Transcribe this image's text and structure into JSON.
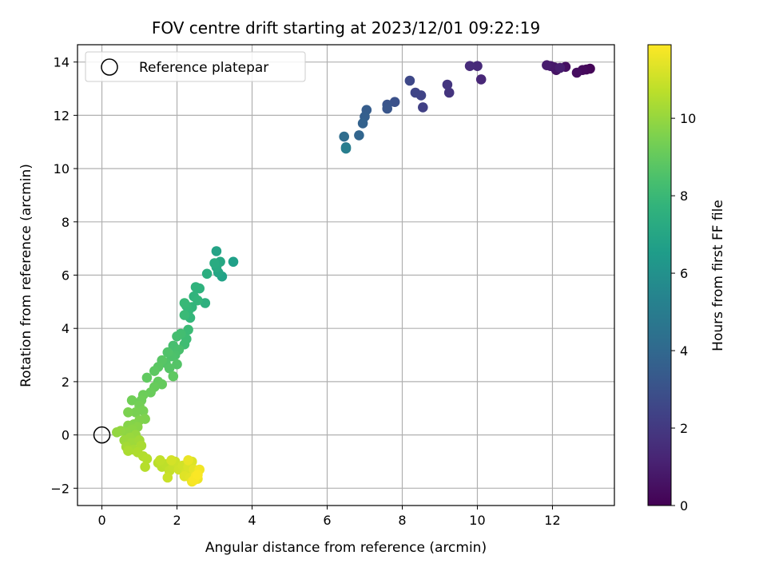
{
  "chart_data": {
    "type": "scatter",
    "title": "FOV centre drift starting at 2023/12/01 09:22:19",
    "xlabel": "Angular distance from reference (arcmin)",
    "ylabel": "Rotation from reference (arcmin)",
    "xlim": [
      -0.65,
      13.65
    ],
    "ylim": [
      -2.65,
      14.65
    ],
    "xticks": [
      0,
      2,
      4,
      6,
      8,
      10,
      12
    ],
    "yticks": [
      -2,
      0,
      2,
      4,
      6,
      8,
      10,
      12,
      14
    ],
    "grid": true,
    "colormap": "viridis",
    "colorbar": {
      "label": "Hours from first FF file",
      "range": [
        0,
        11.9
      ],
      "ticks": [
        0,
        2,
        4,
        6,
        8,
        10
      ]
    },
    "legend": {
      "placement": "top-left",
      "entries": [
        {
          "label": "Reference platepar",
          "marker": "open-circle"
        }
      ]
    },
    "reference_point": {
      "x": 0,
      "y": 0
    },
    "series": [
      {
        "points": [
          [
            13.0,
            13.75,
            0.1
          ],
          [
            12.9,
            13.72,
            0.2
          ],
          [
            12.8,
            13.7,
            0.3
          ],
          [
            12.65,
            13.6,
            0.4
          ],
          [
            12.35,
            13.82,
            0.5
          ],
          [
            12.1,
            13.7,
            0.6
          ],
          [
            12.05,
            13.8,
            0.7
          ],
          [
            11.95,
            13.85,
            0.8
          ],
          [
            11.85,
            13.88,
            0.9
          ],
          [
            12.2,
            13.78,
            1.0
          ],
          [
            10.1,
            13.35,
            1.3
          ],
          [
            10.0,
            13.85,
            1.4
          ],
          [
            9.8,
            13.85,
            1.5
          ],
          [
            9.25,
            12.85,
            1.8
          ],
          [
            9.2,
            13.15,
            1.9
          ],
          [
            8.55,
            12.3,
            2.3
          ],
          [
            8.5,
            12.75,
            2.4
          ],
          [
            8.35,
            12.85,
            2.5
          ],
          [
            8.2,
            13.3,
            2.6
          ],
          [
            7.8,
            12.5,
            3.0
          ],
          [
            7.6,
            12.4,
            3.1
          ],
          [
            7.6,
            12.25,
            3.2
          ],
          [
            7.05,
            12.2,
            3.5
          ],
          [
            7.0,
            11.95,
            3.6
          ],
          [
            6.95,
            11.7,
            3.7
          ],
          [
            6.85,
            11.25,
            3.9
          ],
          [
            6.45,
            11.2,
            4.2
          ],
          [
            6.5,
            10.8,
            4.9
          ],
          [
            6.5,
            10.75,
            5.1
          ],
          [
            3.5,
            6.5,
            6.7
          ],
          [
            3.2,
            5.95,
            6.8
          ],
          [
            3.05,
            6.9,
            6.9
          ],
          [
            3.1,
            6.1,
            7.0
          ],
          [
            3.15,
            6.5,
            7.1
          ],
          [
            3.05,
            6.3,
            7.2
          ],
          [
            3.0,
            6.45,
            7.3
          ],
          [
            2.8,
            6.05,
            7.4
          ],
          [
            2.75,
            4.95,
            7.5
          ],
          [
            2.6,
            5.5,
            7.6
          ],
          [
            2.5,
            5.55,
            7.65
          ],
          [
            2.45,
            5.2,
            7.7
          ],
          [
            2.4,
            4.8,
            7.75
          ],
          [
            2.55,
            5.05,
            7.8
          ],
          [
            2.35,
            4.4,
            7.85
          ],
          [
            2.3,
            4.65,
            7.9
          ],
          [
            2.25,
            4.85,
            7.95
          ],
          [
            2.2,
            4.95,
            8.0
          ],
          [
            2.2,
            4.5,
            8.05
          ],
          [
            2.3,
            3.95,
            8.1
          ],
          [
            2.25,
            3.6,
            8.15
          ],
          [
            2.2,
            3.4,
            8.2
          ],
          [
            2.1,
            3.8,
            8.25
          ],
          [
            2.0,
            3.7,
            8.3
          ],
          [
            1.9,
            3.35,
            8.35
          ],
          [
            2.05,
            3.2,
            8.4
          ],
          [
            1.95,
            3.0,
            8.45
          ],
          [
            1.85,
            2.95,
            8.5
          ],
          [
            1.75,
            3.1,
            8.55
          ],
          [
            1.7,
            2.7,
            8.6
          ],
          [
            2.0,
            2.65,
            8.65
          ],
          [
            1.8,
            2.5,
            8.7
          ],
          [
            1.6,
            2.8,
            8.75
          ],
          [
            1.5,
            2.55,
            8.8
          ],
          [
            1.4,
            2.4,
            8.85
          ],
          [
            1.9,
            2.2,
            8.9
          ],
          [
            1.2,
            2.15,
            8.95
          ],
          [
            1.5,
            2.0,
            9.0
          ],
          [
            1.6,
            1.9,
            9.05
          ],
          [
            1.4,
            1.8,
            9.1
          ],
          [
            1.3,
            1.6,
            9.15
          ],
          [
            1.1,
            1.5,
            9.2
          ],
          [
            1.05,
            1.3,
            9.25
          ],
          [
            0.8,
            1.3,
            9.3
          ],
          [
            1.0,
            1.1,
            9.35
          ],
          [
            1.1,
            0.9,
            9.4
          ],
          [
            0.9,
            0.85,
            9.45
          ],
          [
            0.7,
            0.85,
            9.5
          ],
          [
            1.15,
            0.6,
            9.55
          ],
          [
            1.0,
            0.55,
            9.6
          ],
          [
            0.85,
            0.4,
            9.65
          ],
          [
            0.7,
            0.35,
            9.7
          ],
          [
            0.95,
            0.3,
            9.75
          ],
          [
            0.8,
            0.2,
            9.8
          ],
          [
            0.65,
            0.1,
            9.85
          ],
          [
            0.5,
            0.15,
            9.9
          ],
          [
            0.4,
            0.1,
            9.95
          ],
          [
            0.9,
            0.0,
            10.0
          ],
          [
            0.75,
            -0.1,
            10.05
          ],
          [
            0.6,
            -0.2,
            10.1
          ],
          [
            0.8,
            -0.3,
            10.15
          ],
          [
            1.0,
            -0.2,
            10.2
          ],
          [
            0.65,
            -0.45,
            10.25
          ],
          [
            0.85,
            -0.55,
            10.3
          ],
          [
            1.05,
            -0.4,
            10.35
          ],
          [
            0.7,
            -0.6,
            10.4
          ],
          [
            0.95,
            -0.65,
            10.45
          ],
          [
            1.1,
            -0.8,
            10.5
          ],
          [
            1.2,
            -0.9,
            10.55
          ],
          [
            1.15,
            -1.2,
            10.6
          ],
          [
            1.5,
            -1.05,
            10.65
          ],
          [
            1.6,
            -1.2,
            10.7
          ],
          [
            1.7,
            -1.1,
            10.75
          ],
          [
            1.55,
            -0.95,
            10.8
          ],
          [
            1.8,
            -1.35,
            10.85
          ],
          [
            1.9,
            -1.2,
            10.9
          ],
          [
            1.75,
            -1.6,
            10.95
          ],
          [
            1.95,
            -1.0,
            11.0
          ],
          [
            2.05,
            -1.3,
            11.05
          ],
          [
            2.15,
            -1.15,
            11.1
          ],
          [
            1.85,
            -0.95,
            11.15
          ],
          [
            2.25,
            -1.4,
            11.2
          ],
          [
            2.3,
            -1.2,
            11.25
          ],
          [
            2.4,
            -1.0,
            11.3
          ],
          [
            2.2,
            -1.55,
            11.35
          ],
          [
            2.35,
            -1.6,
            11.4
          ],
          [
            2.45,
            -1.3,
            11.45
          ],
          [
            2.5,
            -1.45,
            11.5
          ],
          [
            2.3,
            -0.95,
            11.55
          ],
          [
            2.55,
            -1.65,
            11.6
          ],
          [
            2.4,
            -1.75,
            11.65
          ],
          [
            2.6,
            -1.3,
            11.7
          ],
          [
            2.5,
            -1.55,
            11.75
          ],
          [
            2.45,
            -1.7,
            11.8
          ],
          [
            2.55,
            -1.5,
            11.85
          ]
        ]
      }
    ]
  }
}
